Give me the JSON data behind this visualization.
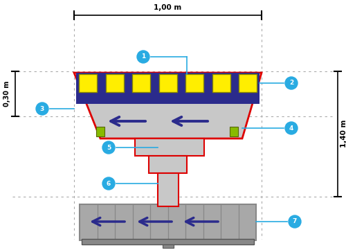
{
  "bg_color": "#ffffff",
  "gray_light": "#c8c8c8",
  "gray_medium": "#a8a8a8",
  "gray_dark": "#888888",
  "red_outline": "#dd0000",
  "navy": "#2b2b8c",
  "yellow_sq": "#ffee00",
  "yellow_edge": "#888800",
  "cyan": "#29abe2",
  "green_corner": "#88bb00",
  "circle_bg": "#29abe2",
  "circle_text": "#ffffff",
  "dot_color": "#aaaaaa",
  "dim_color": "#000000",
  "width_label": "1,00 m",
  "height_label": "1,40 m",
  "height2_label": "0,30 m"
}
